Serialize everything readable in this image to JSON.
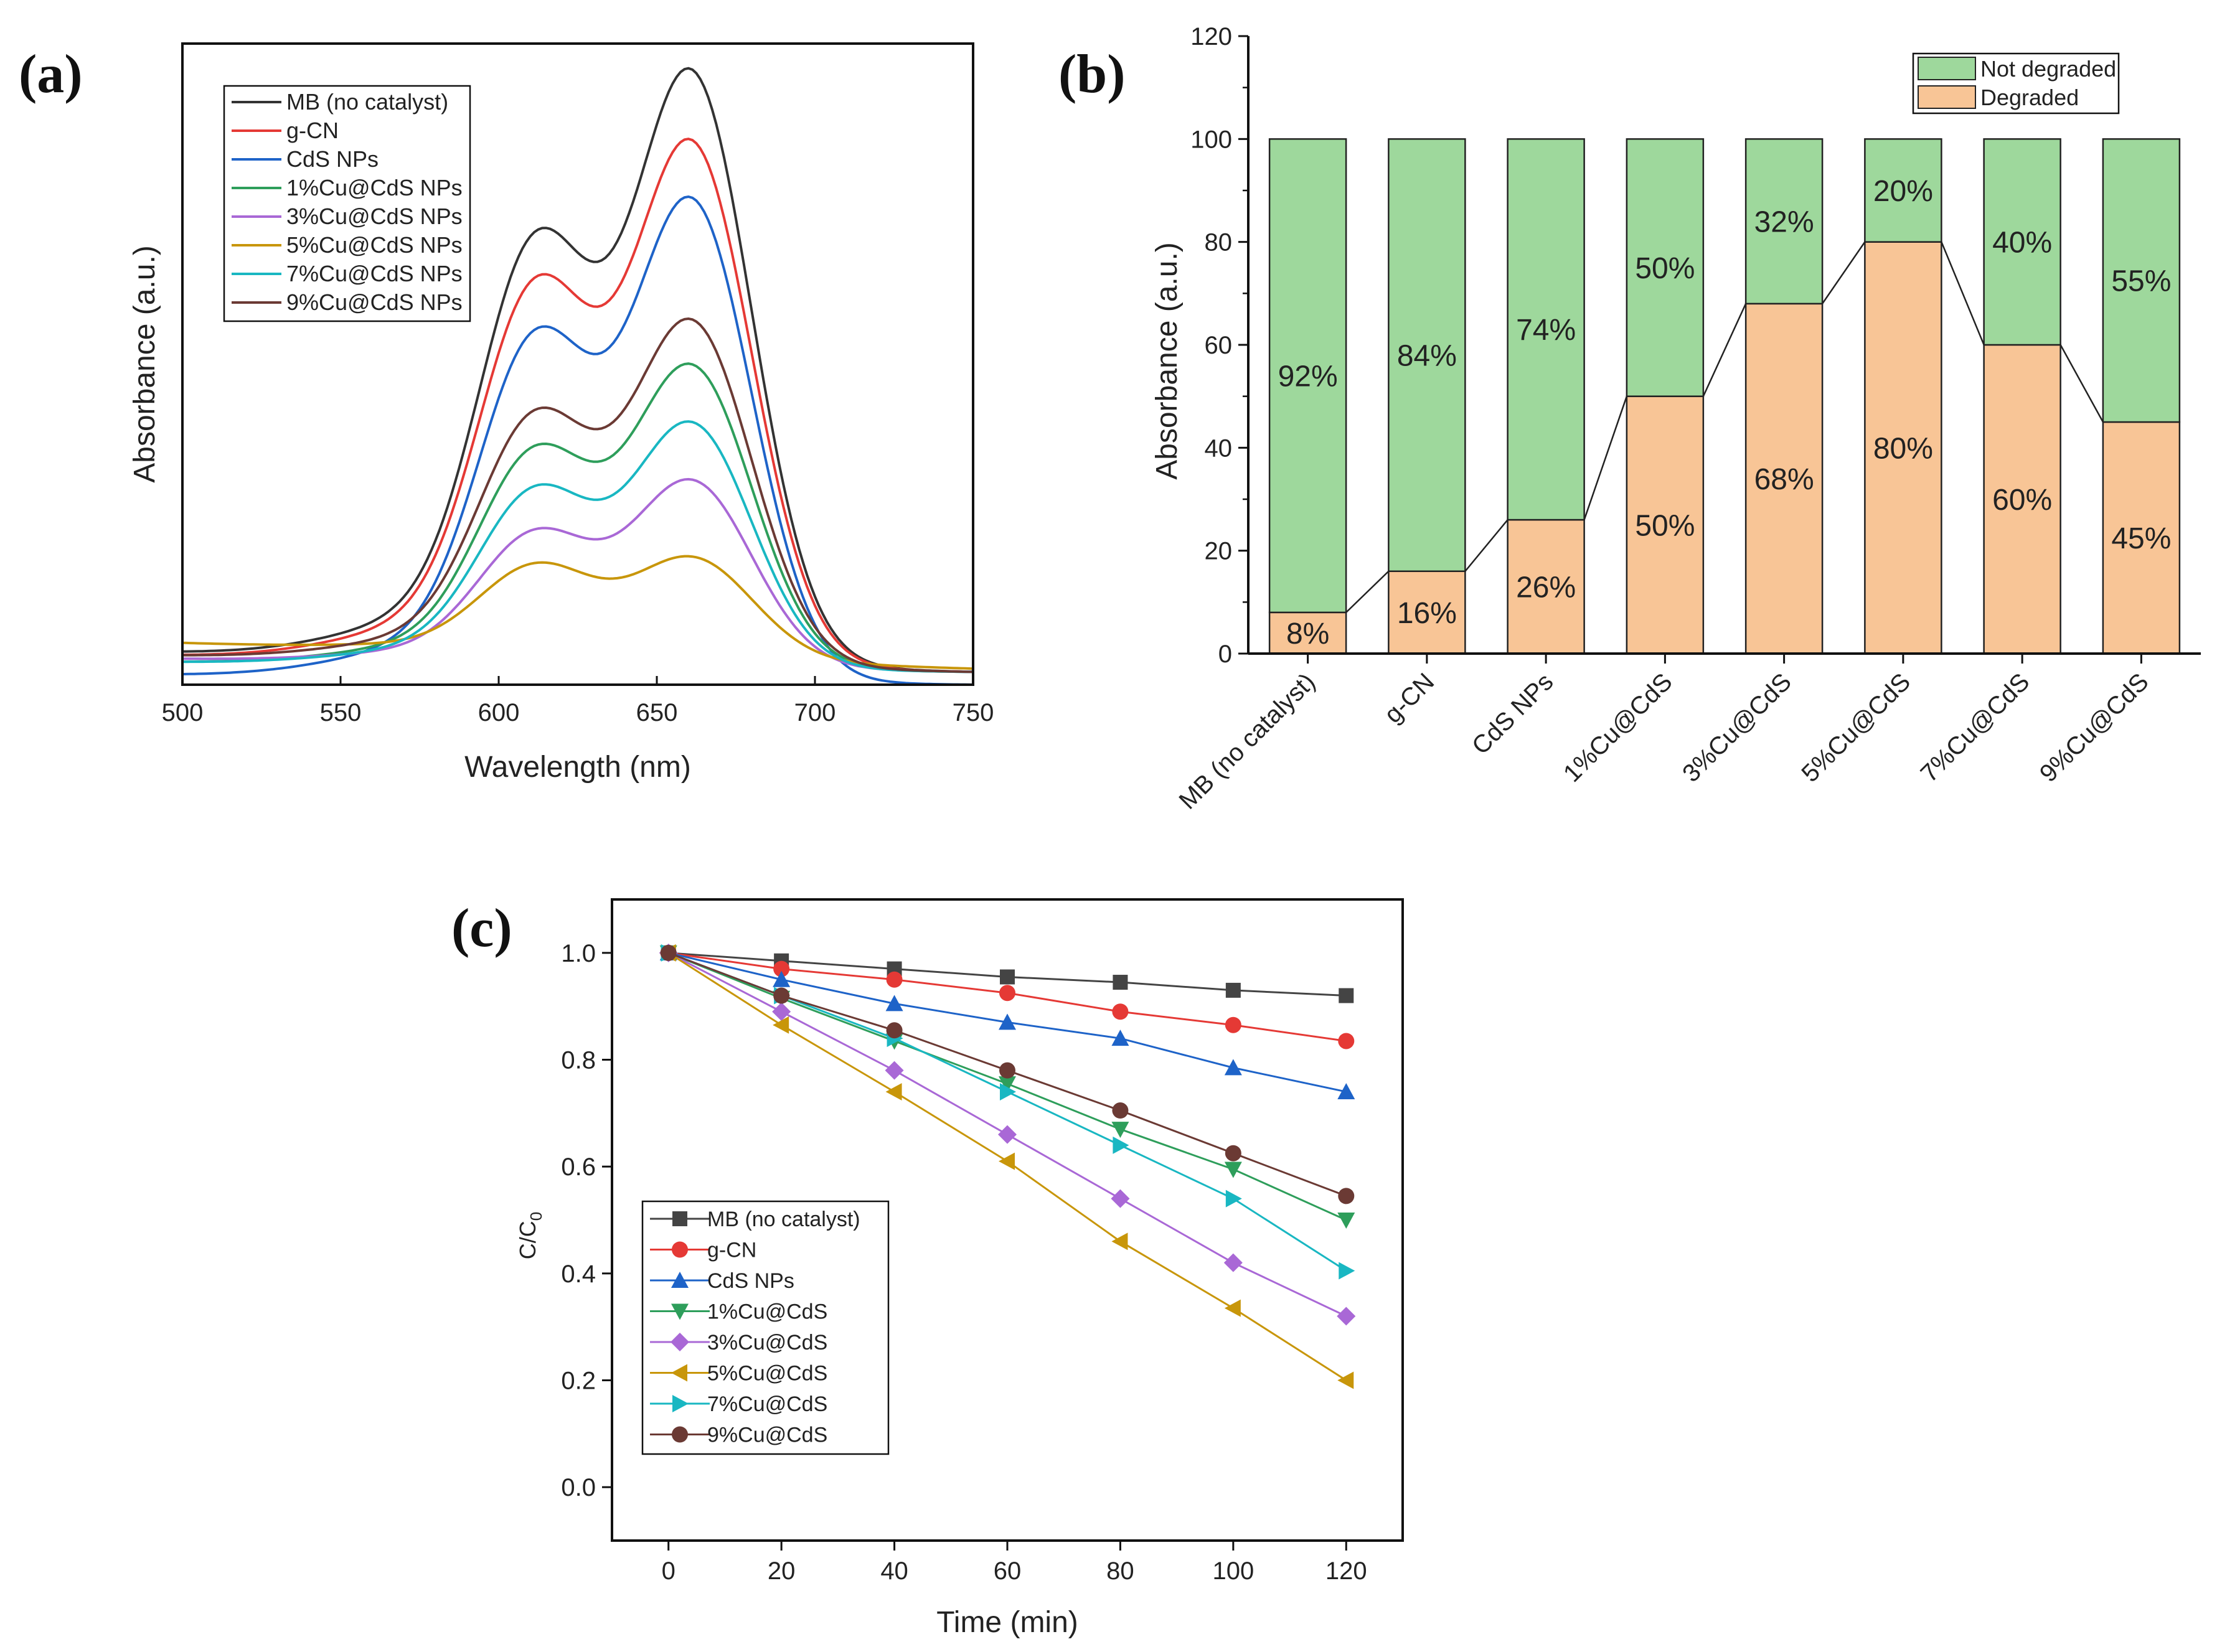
{
  "panels": {
    "a": {
      "label": "(a)"
    },
    "b": {
      "label": "(b)"
    },
    "c": {
      "label": "(c)"
    }
  },
  "chart_data": [
    {
      "id": "a",
      "type": "line",
      "title": "",
      "xlabel": "Wavelength (nm)",
      "ylabel": "Absorbance (a.u.)",
      "xlim": [
        500,
        750
      ],
      "ylim": [
        0,
        1
      ],
      "xticks": [
        500,
        550,
        600,
        650,
        700,
        750
      ],
      "legend_position": "top-left",
      "series": [
        {
          "name": "MB (no catalyst)",
          "color": "#333333",
          "peak": 0.96,
          "shoulder": 0.505,
          "base_left": 0.05,
          "base_right": 0.02
        },
        {
          "name": "g-CN",
          "color": "#e53935",
          "peak": 0.85,
          "shoulder": 0.455,
          "base_left": 0.045,
          "base_right": 0.02
        },
        {
          "name": "CdS NPs",
          "color": "#1e63c8",
          "peak": 0.76,
          "shoulder": 0.4,
          "base_left": 0.015,
          "base_right": 0.0
        },
        {
          "name": "1%Cu@CdS NPs",
          "color": "#2e9e5b",
          "peak": 0.5,
          "shoulder": 0.265,
          "base_left": 0.035,
          "base_right": 0.02
        },
        {
          "name": "3%Cu@CdS NPs",
          "color": "#a968d6",
          "peak": 0.32,
          "shoulder": 0.17,
          "base_left": 0.04,
          "base_right": 0.02
        },
        {
          "name": "5%Cu@CdS NPs",
          "color": "#c8960a",
          "peak": 0.2,
          "shoulder": 0.14,
          "base_left": 0.065,
          "base_right": 0.025
        },
        {
          "name": "7%Cu@CdS NPs",
          "color": "#19b7c2",
          "peak": 0.41,
          "shoulder": 0.22,
          "base_left": 0.035,
          "base_right": 0.02
        },
        {
          "name": "9%Cu@CdS NPs",
          "color": "#6b3a34",
          "peak": 0.57,
          "shoulder": 0.305,
          "base_left": 0.045,
          "base_right": 0.02
        }
      ]
    },
    {
      "id": "b",
      "type": "bar",
      "title": "",
      "xlabel": "",
      "ylabel": "Absorbance (a.u.)",
      "ylim": [
        0,
        120
      ],
      "yticks": [
        0,
        20,
        40,
        60,
        80,
        100,
        120
      ],
      "categories": [
        "MB (no catalyst)",
        "g-CN",
        "CdS NPs",
        "1%Cu@CdS",
        "3%Cu@CdS",
        "5%Cu@CdS",
        "7%Cu@CdS",
        "9%Cu@CdS"
      ],
      "legend_position": "top-right",
      "series": [
        {
          "name": "Degraded",
          "color": "#f8c596",
          "values": [
            8,
            16,
            26,
            50,
            68,
            80,
            60,
            45
          ],
          "labels": [
            "8%",
            "16%",
            "26%",
            "50%",
            "68%",
            "80%",
            "60%",
            "45%"
          ]
        },
        {
          "name": "Not degraded",
          "color": "#9ed89c",
          "values": [
            92,
            84,
            74,
            50,
            32,
            20,
            40,
            55
          ],
          "labels": [
            "92%",
            "84%",
            "74%",
            "50%",
            "32%",
            "20%",
            "40%",
            "55%"
          ]
        }
      ],
      "legend_order": [
        "Not degraded",
        "Degraded"
      ]
    },
    {
      "id": "c",
      "type": "line",
      "title": "",
      "xlabel": "Time (min)",
      "ylabel": "C/C",
      "ylabel_sub": "0",
      "xlim": [
        -10,
        130
      ],
      "ylim": [
        -0.1,
        1.1
      ],
      "xticks": [
        0,
        20,
        40,
        60,
        80,
        100,
        120
      ],
      "yticks": [
        0.0,
        0.2,
        0.4,
        0.6,
        0.8,
        1.0
      ],
      "ytick_labels": [
        "0.0",
        "0.2",
        "0.4",
        "0.6",
        "0.8",
        "1.0"
      ],
      "legend_position": "bottom-left",
      "x": [
        0,
        20,
        40,
        60,
        80,
        100,
        120
      ],
      "series": [
        {
          "name": "MB (no catalyst)",
          "color": "#444444",
          "marker": "square",
          "values": [
            1.0,
            0.985,
            0.97,
            0.955,
            0.945,
            0.93,
            0.92
          ]
        },
        {
          "name": "g-CN",
          "color": "#e53935",
          "marker": "circle",
          "values": [
            1.0,
            0.97,
            0.95,
            0.925,
            0.89,
            0.865,
            0.835
          ]
        },
        {
          "name": "CdS NPs",
          "color": "#1e63c8",
          "marker": "triangle-up",
          "values": [
            1.0,
            0.95,
            0.905,
            0.87,
            0.84,
            0.785,
            0.74
          ]
        },
        {
          "name": "1%Cu@CdS",
          "color": "#2e9e5b",
          "marker": "triangle-down",
          "values": [
            1.0,
            0.915,
            0.835,
            0.755,
            0.67,
            0.595,
            0.5
          ]
        },
        {
          "name": "3%Cu@CdS",
          "color": "#a968d6",
          "marker": "diamond",
          "values": [
            1.0,
            0.89,
            0.78,
            0.66,
            0.54,
            0.42,
            0.32
          ]
        },
        {
          "name": "5%Cu@CdS",
          "color": "#c8960a",
          "marker": "triangle-left",
          "values": [
            1.0,
            0.865,
            0.74,
            0.61,
            0.46,
            0.335,
            0.2
          ]
        },
        {
          "name": "7%Cu@CdS",
          "color": "#19b7c2",
          "marker": "triangle-right",
          "values": [
            1.0,
            0.92,
            0.84,
            0.74,
            0.64,
            0.54,
            0.405
          ]
        },
        {
          "name": "9%Cu@CdS",
          "color": "#6b3a34",
          "marker": "circle",
          "values": [
            1.0,
            0.92,
            0.855,
            0.78,
            0.705,
            0.625,
            0.545
          ]
        }
      ]
    }
  ]
}
